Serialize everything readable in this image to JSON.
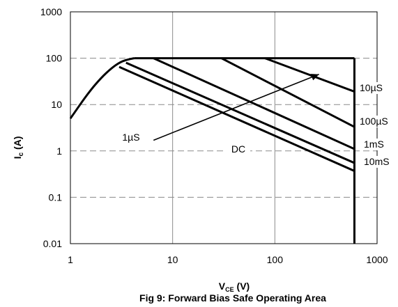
{
  "chart_data": {
    "type": "line",
    "x_scale": "log",
    "y_scale": "log",
    "xlim": [
      1,
      1000
    ],
    "ylim": [
      0.01,
      1000
    ],
    "x_ticks": [
      {
        "value": 1,
        "label": "1"
      },
      {
        "value": 10,
        "label": "10"
      },
      {
        "value": 100,
        "label": "100"
      },
      {
        "value": 1000,
        "label": "1000"
      }
    ],
    "y_ticks": [
      {
        "value": 0.01,
        "label": "0.01"
      },
      {
        "value": 0.1,
        "label": "0.1"
      },
      {
        "value": 1,
        "label": "1"
      },
      {
        "value": 10,
        "label": "10"
      },
      {
        "value": 100,
        "label": "100"
      },
      {
        "value": 1000,
        "label": "1000"
      }
    ],
    "grid": true,
    "ylabel_main": "I",
    "ylabel_sub": "c",
    "ylabel_unit": " (A)",
    "xlabel_main": "V",
    "xlabel_sub": "CE",
    "xlabel_unit": " (V)",
    "title": "Fig 9: Forward Bias Safe Operating Area",
    "boundary": {
      "current_limit": {
        "x": [
          4.2,
          600
        ],
        "y": [
          100,
          100
        ]
      },
      "voltage_limit": {
        "x": [
          600,
          600
        ],
        "y": [
          0.01,
          100
        ]
      },
      "curve": {
        "x": [
          1,
          1.5,
          2,
          2.5,
          3,
          3.5,
          4.2
        ],
        "y": [
          5,
          18,
          38,
          60,
          80,
          92,
          100
        ]
      }
    },
    "series": [
      {
        "name": "10µS",
        "x": [
          80,
          600
        ],
        "y": [
          100,
          19
        ]
      },
      {
        "name": "100µS",
        "x": [
          30,
          600
        ],
        "y": [
          100,
          3.3
        ]
      },
      {
        "name": "1mS",
        "x": [
          6.5,
          600
        ],
        "y": [
          100,
          1.1
        ]
      },
      {
        "name": "10mS",
        "x": [
          3.5,
          600
        ],
        "y": [
          80,
          0.55
        ]
      },
      {
        "name": "DC",
        "x": [
          3,
          600
        ],
        "y": [
          65,
          0.37
        ]
      }
    ],
    "annotations": {
      "label_1us": "1µS",
      "label_10us": "10µS",
      "label_100us": "100µS",
      "label_1ms": "1mS",
      "label_10ms": "10mS",
      "label_dc": "DC"
    },
    "arrow": {
      "from": {
        "x": 6.5,
        "y": 1.7
      },
      "to": {
        "x": 270,
        "y": 45
      }
    }
  }
}
